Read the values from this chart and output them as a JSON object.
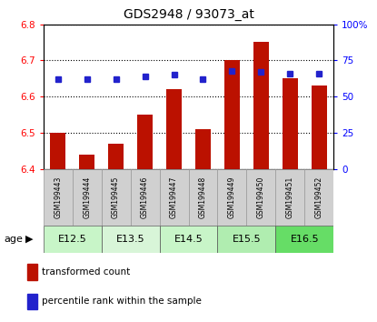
{
  "title": "GDS2948 / 93073_at",
  "samples": [
    "GSM199443",
    "GSM199444",
    "GSM199445",
    "GSM199446",
    "GSM199447",
    "GSM199448",
    "GSM199449",
    "GSM199450",
    "GSM199451",
    "GSM199452"
  ],
  "bar_values": [
    6.5,
    6.44,
    6.47,
    6.55,
    6.62,
    6.51,
    6.7,
    6.75,
    6.65,
    6.63
  ],
  "dot_values": [
    62,
    62,
    62,
    64,
    65,
    62,
    68,
    67,
    66,
    66
  ],
  "age_groups": [
    {
      "label": "E12.5",
      "start": 0,
      "end": 2,
      "color": "#c8f5c8"
    },
    {
      "label": "E13.5",
      "start": 2,
      "end": 4,
      "color": "#d8f5d8"
    },
    {
      "label": "E14.5",
      "start": 4,
      "end": 6,
      "color": "#c8f5c8"
    },
    {
      "label": "E15.5",
      "start": 6,
      "end": 8,
      "color": "#b0edb0"
    },
    {
      "label": "E16.5",
      "start": 8,
      "end": 10,
      "color": "#66dd66"
    }
  ],
  "ylim_left": [
    6.4,
    6.8
  ],
  "ylim_right": [
    0,
    100
  ],
  "yticks_left": [
    6.4,
    6.5,
    6.6,
    6.7,
    6.8
  ],
  "yticks_right": [
    0,
    25,
    50,
    75,
    100
  ],
  "bar_color": "#bb1100",
  "dot_color": "#2222cc",
  "bar_width": 0.55,
  "legend_items": [
    "transformed count",
    "percentile rank within the sample"
  ],
  "age_label": "age",
  "sample_box_color": "#d0d0d0",
  "sample_box_edge": "#999999"
}
